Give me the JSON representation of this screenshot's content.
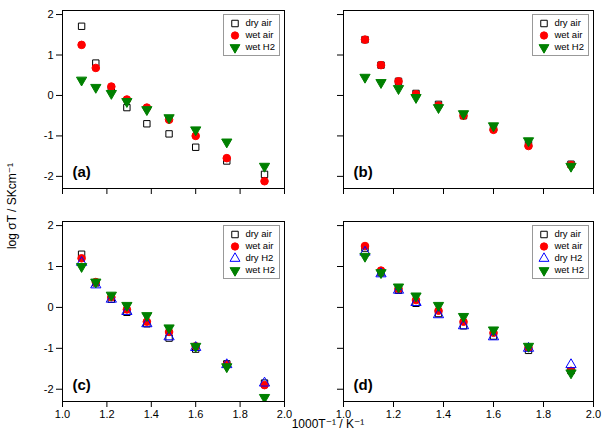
{
  "xlabel": "1000T⁻¹ / K⁻¹",
  "ylabel": "log σT / SKcm⁻¹",
  "chart_data": [
    {
      "type": "scatter",
      "title": "(a)",
      "x": [
        1.086,
        1.15,
        1.22,
        1.29,
        1.38,
        1.48,
        1.6,
        1.74,
        1.91
      ],
      "xlim": [
        1.0,
        2.0
      ],
      "xticks": [
        {
          "value": 1,
          "label": "1.0"
        },
        1.2,
        1.4,
        1.6,
        1.8,
        {
          "value": 2,
          "label": "2.0"
        }
      ],
      "ylim": [
        -2.3,
        2.1
      ],
      "yticks": [
        -2,
        -1,
        0,
        1,
        2
      ],
      "legend": "upper right",
      "tick_labels": "y",
      "series": [
        {
          "name": "dry air",
          "color": "#000000",
          "marker": "square-open",
          "values": [
            1.71,
            0.8,
            0.15,
            -0.3,
            -0.7,
            -0.95,
            -1.28,
            -1.62,
            -1.95
          ]
        },
        {
          "name": "wet air",
          "color": "#ff0000",
          "marker": "circle",
          "values": [
            1.25,
            0.68,
            0.22,
            -0.1,
            -0.3,
            -0.6,
            -1.0,
            -1.55,
            -2.12
          ]
        },
        {
          "name": "wet H2",
          "color": "#008000",
          "marker": "triangle-down",
          "values": [
            0.38,
            0.2,
            0.05,
            -0.15,
            -0.35,
            -0.55,
            -0.85,
            -1.15,
            -1.75
          ]
        }
      ]
    },
    {
      "type": "scatter",
      "title": "(b)",
      "x": [
        1.086,
        1.15,
        1.22,
        1.29,
        1.38,
        1.48,
        1.6,
        1.74,
        1.91
      ],
      "xlim": [
        1.0,
        2.0
      ],
      "xticks": [
        {
          "value": 1,
          "label": "1.0"
        },
        1.2,
        1.4,
        1.6,
        1.8,
        {
          "value": 2,
          "label": "2.0"
        }
      ],
      "ylim": [
        -2.3,
        2.1
      ],
      "yticks": [
        -2,
        -1,
        0,
        1,
        2
      ],
      "legend": "upper right",
      "tick_labels": false,
      "series": [
        {
          "name": "dry air",
          "color": "#000000",
          "marker": "square-open",
          "values": [
            1.38,
            0.75,
            0.35,
            0.05,
            -0.22,
            -0.5,
            -0.8,
            -1.2,
            -1.7
          ]
        },
        {
          "name": "wet air",
          "color": "#ff0000",
          "marker": "circle",
          "values": [
            1.38,
            0.75,
            0.35,
            0.03,
            -0.25,
            -0.5,
            -0.85,
            -1.25,
            -1.72
          ]
        },
        {
          "name": "wet H2",
          "color": "#008000",
          "marker": "triangle-down",
          "values": [
            0.45,
            0.32,
            0.17,
            -0.05,
            -0.3,
            -0.45,
            -0.75,
            -1.12,
            -1.75
          ]
        }
      ]
    },
    {
      "type": "scatter",
      "title": "(c)",
      "x": [
        1.086,
        1.15,
        1.22,
        1.29,
        1.38,
        1.48,
        1.6,
        1.74,
        1.91
      ],
      "xlim": [
        1.0,
        2.0
      ],
      "xticks": [
        {
          "value": 1,
          "label": "1.0"
        },
        1.2,
        1.4,
        1.6,
        1.8,
        {
          "value": 2,
          "label": "2.0"
        }
      ],
      "ylim": [
        -2.3,
        2.1
      ],
      "yticks": [
        -2,
        -1,
        0,
        1,
        2
      ],
      "legend": "upper right",
      "tick_labels": true,
      "series": [
        {
          "name": "dry air",
          "color": "#000000",
          "marker": "square-open",
          "values": [
            1.3,
            0.6,
            0.2,
            -0.12,
            -0.4,
            -0.75,
            -1.02,
            -1.38,
            -1.85
          ]
        },
        {
          "name": "wet air",
          "color": "#ff0000",
          "marker": "circle",
          "values": [
            1.2,
            0.62,
            0.25,
            -0.05,
            -0.35,
            -0.6,
            -0.95,
            -1.4,
            -1.9
          ]
        },
        {
          "name": "dry H2",
          "color": "#0000ff",
          "marker": "triangle-open",
          "values": [
            1.1,
            0.55,
            0.2,
            -0.1,
            -0.4,
            -0.72,
            -0.98,
            -1.4,
            -1.85
          ]
        },
        {
          "name": "wet H2",
          "color": "#008000",
          "marker": "triangle-down",
          "values": [
            1.0,
            0.62,
            0.3,
            0.05,
            -0.2,
            -0.5,
            -0.95,
            -1.45,
            -2.2
          ]
        }
      ]
    },
    {
      "type": "scatter",
      "title": "(d)",
      "x": [
        1.086,
        1.15,
        1.22,
        1.29,
        1.38,
        1.48,
        1.6,
        1.74,
        1.91
      ],
      "xlim": [
        1.0,
        2.0
      ],
      "xticks": [
        {
          "value": 1,
          "label": "1.0"
        },
        1.2,
        1.4,
        1.6,
        1.8,
        {
          "value": 2,
          "label": "2.0"
        }
      ],
      "ylim": [
        -2.3,
        2.1
      ],
      "yticks": [
        -2,
        -1,
        0,
        1,
        2
      ],
      "legend": "upper right",
      "tick_labels": "x",
      "series": [
        {
          "name": "dry air",
          "color": "#000000",
          "marker": "square-open",
          "values": [
            1.45,
            0.85,
            0.42,
            0.1,
            -0.15,
            -0.45,
            -0.7,
            -1.05,
            -1.55
          ]
        },
        {
          "name": "wet air",
          "color": "#ff0000",
          "marker": "circle",
          "values": [
            1.5,
            0.9,
            0.45,
            0.18,
            -0.08,
            -0.35,
            -0.62,
            -0.98,
            -1.55
          ]
        },
        {
          "name": "dry H2",
          "color": "#0000ff",
          "marker": "triangle-open",
          "values": [
            1.35,
            0.82,
            0.42,
            0.12,
            -0.18,
            -0.45,
            -0.72,
            -1.0,
            -1.4
          ]
        },
        {
          "name": "wet H2",
          "color": "#008000",
          "marker": "triangle-down",
          "values": [
            1.25,
            0.85,
            0.5,
            0.28,
            0.05,
            -0.22,
            -0.55,
            -0.95,
            -1.6
          ]
        }
      ]
    }
  ]
}
